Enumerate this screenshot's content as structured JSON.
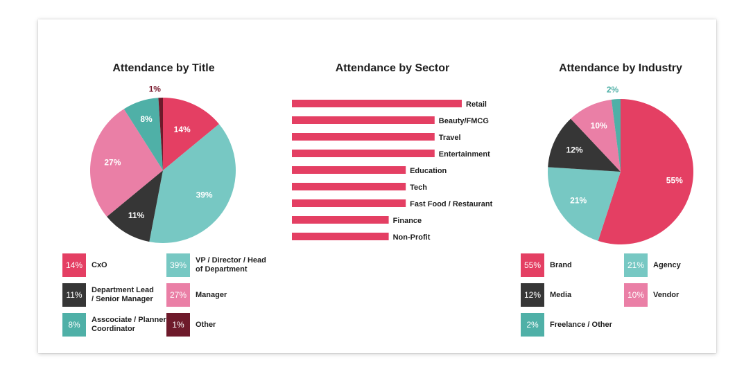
{
  "chart_data": [
    {
      "type": "pie",
      "title": "Attendance by Title",
      "slices": [
        {
          "label": "CxO",
          "value": 14,
          "text": "14%",
          "color": "#e43f63"
        },
        {
          "label": "VP / Director / Head of Department",
          "value": 39,
          "text": "39%",
          "color": "#77c8c3"
        },
        {
          "label": "Department Lead / Senior Manager",
          "value": 11,
          "text": "11%",
          "color": "#363636"
        },
        {
          "label": "Manager",
          "value": 27,
          "text": "27%",
          "color": "#ea7fa6"
        },
        {
          "label": "Asscociate / Planner Coordinator",
          "value": 8,
          "text": "8%",
          "color": "#4fb0a7"
        },
        {
          "label": "Other",
          "value": 1,
          "text": "1%",
          "color": "#6e1a2b"
        }
      ],
      "legend": [
        {
          "text": "14%",
          "label1": "CxO",
          "label2": "",
          "color": "#e43f63"
        },
        {
          "text": "39%",
          "label1": "VP / Director / Head",
          "label2": "of Department",
          "color": "#77c8c3"
        },
        {
          "text": "11%",
          "label1": "Department Lead",
          "label2": "/ Senior Manager",
          "color": "#363636"
        },
        {
          "text": "27%",
          "label1": "Manager",
          "label2": "",
          "color": "#ea7fa6"
        },
        {
          "text": "8%",
          "label1": "Asscociate / Planner",
          "label2": "Coordinator",
          "color": "#4fb0a7"
        },
        {
          "text": "1%",
          "label1": "Other",
          "label2": "",
          "color": "#6e1a2b"
        }
      ]
    },
    {
      "type": "bar",
      "orientation": "horizontal",
      "title": "Attendance by Sector",
      "categories": [
        "Retail",
        "Beauty/FMCG",
        "Travel",
        "Entertainment",
        "Education",
        "Tech",
        "Fast Food / Restaurant",
        "Finance",
        "Non-Profit"
      ],
      "values": [
        100,
        84,
        84,
        84,
        67,
        67,
        67,
        57,
        57
      ],
      "color": "#e43f63",
      "value_unit": "relative (no axis shown)"
    },
    {
      "type": "pie",
      "title": "Attendance by Industry",
      "slices": [
        {
          "label": "Brand",
          "value": 55,
          "text": "55%",
          "color": "#e43f63"
        },
        {
          "label": "Agency",
          "value": 21,
          "text": "21%",
          "color": "#77c8c3"
        },
        {
          "label": "Media",
          "value": 12,
          "text": "12%",
          "color": "#363636"
        },
        {
          "label": "Vendor",
          "value": 10,
          "text": "10%",
          "color": "#ea7fa6"
        },
        {
          "label": "Freelance / Other",
          "value": 2,
          "text": "2%",
          "color": "#4fb0a7"
        }
      ],
      "legend": [
        {
          "text": "55%",
          "label1": "Brand",
          "label2": "",
          "color": "#e43f63"
        },
        {
          "text": "21%",
          "label1": "Agency",
          "label2": "",
          "color": "#77c8c3"
        },
        {
          "text": "12%",
          "label1": "Media",
          "label2": "",
          "color": "#363636"
        },
        {
          "text": "10%",
          "label1": "Vendor",
          "label2": "",
          "color": "#ea7fa6"
        },
        {
          "text": "2%",
          "label1": "Freelance / Other",
          "label2": "",
          "color": "#4fb0a7"
        }
      ]
    }
  ]
}
